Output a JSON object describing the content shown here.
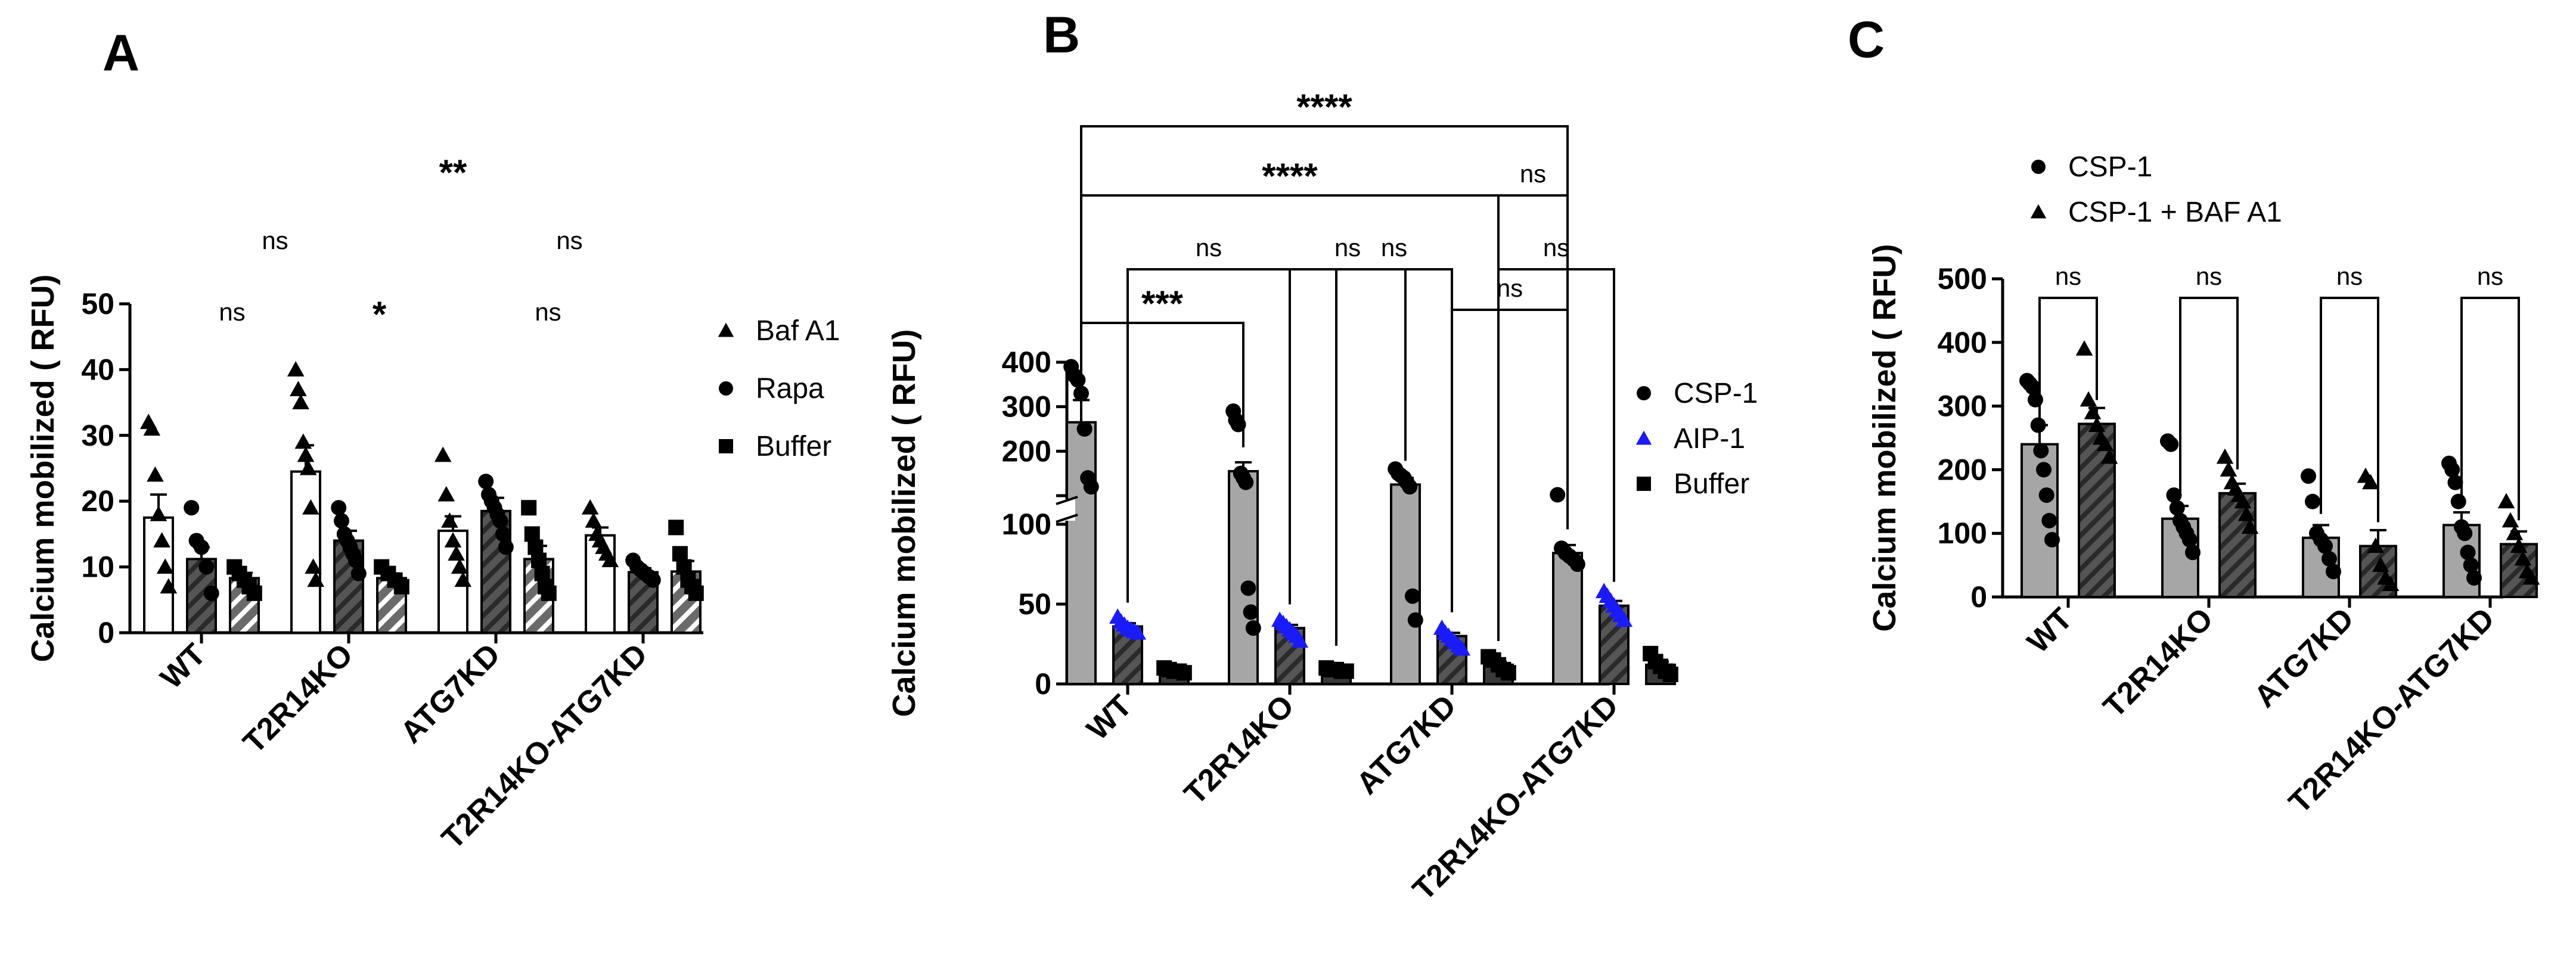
{
  "chart_data": [
    {
      "panel": "A",
      "type": "bar",
      "ylabel": "Calcium mobilized ( RFU)",
      "ylim": [
        0,
        50
      ],
      "yticks": [
        0,
        10,
        20,
        30,
        40,
        50
      ],
      "categories": [
        "WT",
        "T2R14KO",
        "ATG7KD",
        "T2R14KO-ATG7KD"
      ],
      "series": [
        {
          "name": "Baf A1",
          "marker": "triangle",
          "fill": "white",
          "values": [
            17.5,
            24.5,
            15.5,
            14.8
          ],
          "sem": [
            3.5,
            4.0,
            2.2,
            1.2
          ],
          "points": [
            [
              32,
              31,
              24,
              18,
              14,
              10,
              7
            ],
            [
              40,
              37,
              35,
              29,
              27,
              25,
              19,
              10,
              8
            ],
            [
              27,
              21,
              17,
              14,
              12,
              10,
              8
            ],
            [
              19,
              17,
              15,
              14,
              13,
              12,
              11
            ]
          ]
        },
        {
          "name": "Rapa",
          "marker": "circle",
          "fill": "hatch-dark",
          "values": [
            11.2,
            14.0,
            18.5,
            9.2
          ],
          "sem": [
            1.8,
            1.5,
            2.0,
            0.6
          ],
          "points": [
            [
              19,
              14,
              13,
              10,
              6
            ],
            [
              19,
              17,
              15,
              14,
              13,
              12,
              11,
              9
            ],
            [
              23,
              21,
              20,
              19,
              18,
              17,
              15,
              13
            ],
            [
              11,
              10,
              9.5,
              9,
              8.5,
              8
            ]
          ]
        },
        {
          "name": "Buffer",
          "marker": "square",
          "fill": "hatch-light",
          "values": [
            8.3,
            8.3,
            11.2,
            9.3
          ],
          "sem": [
            0.8,
            0.7,
            2.0,
            1.6
          ],
          "points": [
            [
              10,
              9,
              8,
              7,
              6
            ],
            [
              10,
              9,
              8,
              7
            ],
            [
              19,
              15,
              13,
              11,
              9,
              7,
              6
            ],
            [
              16,
              12,
              10,
              8,
              7,
              6
            ]
          ]
        }
      ],
      "comparisons": [
        {
          "label": "ns",
          "from": "WT/Baf A1",
          "to": "T2R14KO/Baf A1"
        },
        {
          "label": "*",
          "from": "T2R14KO/Baf A1",
          "to": "ATG7KD/Baf A1"
        },
        {
          "label": "ns",
          "from": "ATG7KD/Baf A1",
          "to": "T2R14KO-ATG7KD/Rapa"
        },
        {
          "label": "ns",
          "from": "WT/Rapa",
          "to": "T2R14KO/Rapa"
        },
        {
          "label": "ns",
          "from": "ATG7KD/Rapa",
          "to": "T2R14KO-ATG7KD/Rapa"
        },
        {
          "label": "**",
          "from": "T2R14KO/Baf A1",
          "to": "T2R14KO-ATG7KD/Baf A1"
        }
      ],
      "legend": [
        {
          "label": "Baf A1",
          "marker": "triangle"
        },
        {
          "label": "Rapa",
          "marker": "circle"
        },
        {
          "label": "Buffer",
          "marker": "square"
        }
      ]
    },
    {
      "panel": "B",
      "type": "bar",
      "ylabel": "Calcium mobilized ( RFU)",
      "axis_break": true,
      "ylim_lower": [
        0,
        100
      ],
      "yticks_lower": [
        0,
        50,
        100
      ],
      "ylim_upper": [
        100,
        400
      ],
      "yticks_upper": [
        100,
        200,
        300,
        400
      ],
      "categories": [
        "WT",
        "T2R14KO",
        "ATG7KD",
        "T2R14KO-ATG7KD"
      ],
      "series": [
        {
          "name": "CSP-1",
          "marker": "circle",
          "fill": "grey",
          "values": [
            265,
            155,
            125,
            82
          ],
          "sem": [
            50,
            20,
            15,
            5
          ],
          "points": [
            [
              390,
              370,
              360,
              330,
              250,
              140,
              120
            ],
            [
              290,
              270,
              260,
              150,
              140,
              130,
              60,
              45,
              35
            ],
            [
              160,
              150,
              145,
              140,
              130,
              120,
              55,
              40
            ],
            [
              102,
              85,
              82,
              80,
              78,
              75
            ]
          ]
        },
        {
          "name": "AIP-1",
          "marker": "triangle",
          "fill": "hatch-dark",
          "color": "#1a1aff",
          "values": [
            36,
            35,
            30,
            49
          ],
          "sem": [
            2,
            2,
            2,
            3
          ],
          "points": [
            [
              42,
              39,
              37,
              35,
              34,
              33,
              32
            ],
            [
              40,
              38,
              36,
              34,
              32,
              30,
              27
            ],
            [
              35,
              32,
              30,
              28,
              26,
              24,
              22
            ],
            [
              58,
              55,
              52,
              49,
              46,
              43,
              40
            ]
          ]
        },
        {
          "name": "Buffer",
          "marker": "square",
          "fill": "dark",
          "values": [
            9,
            9,
            12,
            12
          ],
          "sem": [
            1,
            1,
            2,
            2
          ],
          "points": [
            [
              10,
              9,
              8,
              8,
              7
            ],
            [
              10,
              9,
              9,
              8,
              8
            ],
            [
              17,
              15,
              12,
              9,
              7
            ],
            [
              19,
              14,
              11,
              8,
              6
            ]
          ]
        }
      ],
      "comparisons": [
        {
          "label": "***",
          "from": "WT/CSP-1",
          "to": "T2R14KO/CSP-1"
        },
        {
          "label": "ns",
          "from": "T2R14KO/AIP-1",
          "to": "ATG7KD/CSP-1"
        },
        {
          "label": "ns",
          "from": "ATG7KD/AIP-1",
          "to": "T2R14KO-ATG7KD/CSP-1"
        },
        {
          "label": "ns",
          "from": "WT/AIP-1",
          "to": "T2R14KO/AIP-1"
        },
        {
          "label": "ns",
          "from": "T2R14KO/Buffer",
          "to": "ATG7KD/AIP-1"
        },
        {
          "label": "ns",
          "from": "ATG7KD/Buffer",
          "to": "T2R14KO-ATG7KD/AIP-1"
        },
        {
          "label": "****",
          "from": "WT/CSP-1",
          "to": "ATG7KD/Buffer"
        },
        {
          "label": "ns",
          "from": "ATG7KD/Buffer",
          "to": "T2R14KO-ATG7KD/CSP-1"
        },
        {
          "label": "****",
          "from": "WT/CSP-1",
          "to": "T2R14KO-ATG7KD/CSP-1"
        }
      ],
      "legend": [
        {
          "label": "CSP-1",
          "marker": "circle",
          "color": "#000000"
        },
        {
          "label": "AIP-1",
          "marker": "triangle",
          "color": "#1a1aff"
        },
        {
          "label": "Buffer",
          "marker": "square",
          "color": "#000000"
        }
      ]
    },
    {
      "panel": "C",
      "type": "bar",
      "ylabel": "Calcium mobilized ( RFU)",
      "ylim": [
        0,
        500
      ],
      "yticks": [
        0,
        100,
        200,
        300,
        400,
        500
      ],
      "categories": [
        "WT",
        "T2R14KO",
        "ATG7KD",
        "T2R14KO-ATG7KD"
      ],
      "series": [
        {
          "name": "CSP-1",
          "marker": "circle",
          "fill": "grey",
          "values": [
            240,
            123,
            93,
            113
          ],
          "sem": [
            30,
            20,
            20,
            20
          ],
          "points": [
            [
              340,
              335,
              330,
              310,
              270,
              230,
              200,
              160,
              120,
              90
            ],
            [
              245,
              240,
              160,
              140,
              120,
              110,
              100,
              90,
              70
            ],
            [
              190,
              150,
              100,
              90,
              80,
              60,
              40
            ],
            [
              210,
              200,
              180,
              150,
              110,
              100,
              70,
              50,
              30
            ]
          ]
        },
        {
          "name": "CSP-1 + BAF A1",
          "marker": "triangle",
          "fill": "hatch-dark",
          "values": [
            272,
            163,
            80,
            83
          ],
          "sem": [
            25,
            15,
            25,
            20
          ],
          "points": [
            [
              390,
              310,
              290,
              270,
              250,
              240,
              220
            ],
            [
              220,
              200,
              180,
              170,
              160,
              150,
              130,
              110
            ],
            [
              190,
              180,
              80,
              50,
              30,
              20
            ],
            [
              150,
              120,
              100,
              80,
              60,
              40,
              30
            ]
          ]
        }
      ],
      "comparisons": [
        {
          "label": "ns",
          "from": "WT/CSP-1",
          "to": "WT/CSP-1 + BAF A1"
        },
        {
          "label": "ns",
          "from": "T2R14KO/CSP-1",
          "to": "T2R14KO/CSP-1 + BAF A1"
        },
        {
          "label": "ns",
          "from": "ATG7KD/CSP-1",
          "to": "ATG7KD/CSP-1 + BAF A1"
        },
        {
          "label": "ns",
          "from": "T2R14KO-ATG7KD/CSP-1",
          "to": "T2R14KO-ATG7KD/CSP-1 + BAF A1"
        }
      ],
      "legend": [
        {
          "label": "CSP-1",
          "marker": "circle"
        },
        {
          "label": "CSP-1 + BAF A1",
          "marker": "triangle"
        }
      ]
    }
  ]
}
